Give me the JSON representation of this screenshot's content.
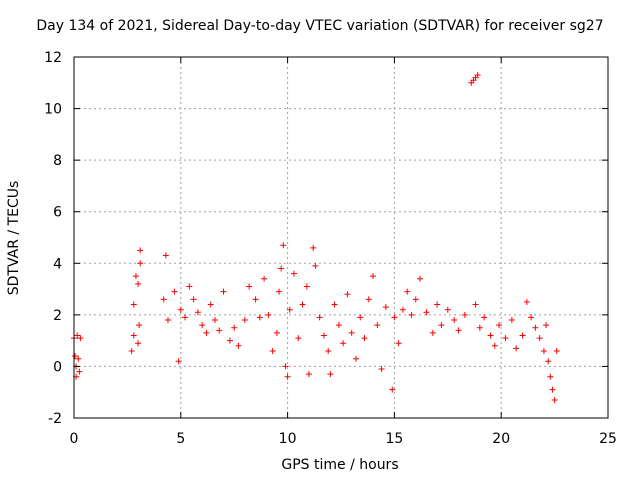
{
  "chart_data": {
    "type": "scatter",
    "title": "Day 134 of 2021, Sidereal Day-to-day VTEC variation (SDTVAR) for receiver sg27",
    "xlabel": "GPS time / hours",
    "ylabel": "SDTVAR / TECUs",
    "xlim": [
      0,
      25
    ],
    "ylim": [
      -2,
      12
    ],
    "xticks": [
      "0",
      "5",
      "10",
      "15",
      "20",
      "25"
    ],
    "yticks": [
      "-2",
      "0",
      "2",
      "4",
      "6",
      "8",
      "10",
      "12"
    ],
    "grid": true,
    "marker": "+",
    "colors": {
      "points": "#ff0000",
      "grid": "#a0a0a0",
      "axis": "#000000"
    },
    "series": [
      {
        "name": "SDTVAR",
        "points": [
          [
            0.0,
            1.1
          ],
          [
            0.05,
            0.4
          ],
          [
            0.1,
            0.0
          ],
          [
            0.1,
            -0.4
          ],
          [
            0.15,
            1.2
          ],
          [
            0.2,
            0.3
          ],
          [
            0.25,
            -0.2
          ],
          [
            0.3,
            1.1
          ],
          [
            2.7,
            0.6
          ],
          [
            2.8,
            1.2
          ],
          [
            2.8,
            2.4
          ],
          [
            2.9,
            3.5
          ],
          [
            3.0,
            0.9
          ],
          [
            3.0,
            3.2
          ],
          [
            3.05,
            1.6
          ],
          [
            3.1,
            4.5
          ],
          [
            3.1,
            4.0
          ],
          [
            4.2,
            2.6
          ],
          [
            4.3,
            4.3
          ],
          [
            4.4,
            1.8
          ],
          [
            4.7,
            2.9
          ],
          [
            4.9,
            0.2
          ],
          [
            5.0,
            2.2
          ],
          [
            5.2,
            1.9
          ],
          [
            5.4,
            3.1
          ],
          [
            5.6,
            2.6
          ],
          [
            5.8,
            2.1
          ],
          [
            6.0,
            1.6
          ],
          [
            6.2,
            1.3
          ],
          [
            6.4,
            2.4
          ],
          [
            6.6,
            1.8
          ],
          [
            6.8,
            1.4
          ],
          [
            7.0,
            2.9
          ],
          [
            7.3,
            1.0
          ],
          [
            7.5,
            1.5
          ],
          [
            7.7,
            0.8
          ],
          [
            8.0,
            1.8
          ],
          [
            8.2,
            3.1
          ],
          [
            8.5,
            2.6
          ],
          [
            8.7,
            1.9
          ],
          [
            8.9,
            3.4
          ],
          [
            9.1,
            2.0
          ],
          [
            9.3,
            0.6
          ],
          [
            9.5,
            1.3
          ],
          [
            9.6,
            2.9
          ],
          [
            9.7,
            3.8
          ],
          [
            9.8,
            4.7
          ],
          [
            9.9,
            0.0
          ],
          [
            10.0,
            -0.4
          ],
          [
            10.1,
            2.2
          ],
          [
            10.3,
            3.6
          ],
          [
            10.5,
            1.1
          ],
          [
            10.7,
            2.4
          ],
          [
            10.9,
            3.1
          ],
          [
            11.0,
            -0.3
          ],
          [
            11.2,
            4.6
          ],
          [
            11.3,
            3.9
          ],
          [
            11.5,
            1.9
          ],
          [
            11.7,
            1.2
          ],
          [
            11.9,
            0.6
          ],
          [
            12.0,
            -0.3
          ],
          [
            12.2,
            2.4
          ],
          [
            12.4,
            1.6
          ],
          [
            12.6,
            0.9
          ],
          [
            12.8,
            2.8
          ],
          [
            13.0,
            1.3
          ],
          [
            13.2,
            0.3
          ],
          [
            13.4,
            1.9
          ],
          [
            13.6,
            1.1
          ],
          [
            13.8,
            2.6
          ],
          [
            14.0,
            3.5
          ],
          [
            14.2,
            1.6
          ],
          [
            14.4,
            -0.1
          ],
          [
            14.6,
            2.3
          ],
          [
            14.9,
            -0.9
          ],
          [
            15.0,
            1.9
          ],
          [
            15.2,
            0.9
          ],
          [
            15.4,
            2.2
          ],
          [
            15.6,
            2.9
          ],
          [
            15.8,
            2.0
          ],
          [
            16.0,
            2.6
          ],
          [
            16.2,
            3.4
          ],
          [
            16.5,
            2.1
          ],
          [
            16.8,
            1.3
          ],
          [
            17.0,
            2.4
          ],
          [
            17.2,
            1.6
          ],
          [
            17.5,
            2.2
          ],
          [
            17.8,
            1.8
          ],
          [
            18.0,
            1.4
          ],
          [
            18.3,
            2.0
          ],
          [
            18.6,
            11.0
          ],
          [
            18.7,
            11.1
          ],
          [
            18.8,
            11.2
          ],
          [
            18.9,
            11.3
          ],
          [
            18.8,
            2.4
          ],
          [
            19.0,
            1.5
          ],
          [
            19.2,
            1.9
          ],
          [
            19.5,
            1.2
          ],
          [
            19.7,
            0.8
          ],
          [
            19.9,
            1.6
          ],
          [
            20.2,
            1.1
          ],
          [
            20.5,
            1.8
          ],
          [
            20.7,
            0.7
          ],
          [
            21.0,
            1.2
          ],
          [
            21.2,
            2.5
          ],
          [
            21.4,
            1.9
          ],
          [
            21.6,
            1.5
          ],
          [
            21.8,
            1.1
          ],
          [
            22.0,
            0.6
          ],
          [
            22.1,
            1.6
          ],
          [
            22.2,
            0.2
          ],
          [
            22.3,
            -0.4
          ],
          [
            22.4,
            -0.9
          ],
          [
            22.5,
            -1.3
          ],
          [
            22.6,
            0.6
          ]
        ]
      }
    ]
  }
}
